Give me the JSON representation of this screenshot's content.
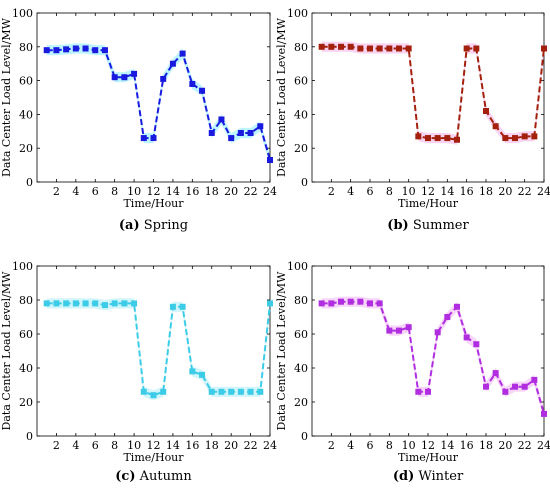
{
  "chart_data": [
    {
      "type": "line",
      "caption_tag": "(a)",
      "caption_text": "Spring",
      "xlabel": "Time/Hour",
      "ylabel": "Data Center Load Level/MW",
      "xlim": [
        0,
        24
      ],
      "ylim": [
        0,
        100
      ],
      "xticks": [
        2,
        4,
        6,
        8,
        10,
        12,
        14,
        16,
        18,
        20,
        22,
        24
      ],
      "yticks": [
        0,
        20,
        40,
        60,
        80,
        100
      ],
      "grid": false,
      "color": "#1a1adf",
      "band_color": "#a6f0ff",
      "x": [
        1,
        2,
        3,
        4,
        5,
        6,
        7,
        8,
        9,
        10,
        11,
        12,
        13,
        14,
        15,
        16,
        17,
        18,
        19,
        20,
        21,
        22,
        23,
        24
      ],
      "values": [
        78,
        78,
        78.5,
        79,
        79,
        78,
        78,
        62,
        62,
        64,
        26,
        26,
        61,
        70,
        76,
        58,
        54,
        29,
        37,
        26,
        29,
        29,
        33,
        13
      ]
    },
    {
      "type": "line",
      "caption_tag": "(b)",
      "caption_text": "Summer",
      "xlabel": "Time/Hour",
      "ylabel": "Data Center Load Level/MW",
      "xlim": [
        0,
        24
      ],
      "ylim": [
        0,
        100
      ],
      "xticks": [
        2,
        4,
        6,
        8,
        10,
        12,
        14,
        16,
        18,
        20,
        22,
        24
      ],
      "yticks": [
        0,
        20,
        40,
        60,
        80,
        100
      ],
      "grid": false,
      "color": "#a3200c",
      "band_color": "#f7c6ee",
      "x": [
        1,
        2,
        3,
        4,
        5,
        6,
        7,
        8,
        9,
        10,
        11,
        12,
        13,
        14,
        15,
        16,
        17,
        18,
        19,
        20,
        21,
        22,
        23,
        24
      ],
      "values": [
        80,
        80,
        80,
        80,
        79,
        79,
        79,
        79,
        79,
        79,
        27,
        26,
        26,
        26,
        25,
        79,
        79,
        42,
        33,
        26,
        26,
        27,
        27,
        79
      ]
    },
    {
      "type": "line",
      "caption_tag": "(c)",
      "caption_text": "Autumn",
      "xlabel": "Time/Hour",
      "ylabel": "Data Center Load Level/MW",
      "xlim": [
        0,
        24
      ],
      "ylim": [
        0,
        100
      ],
      "xticks": [
        2,
        4,
        6,
        8,
        10,
        12,
        14,
        16,
        18,
        20,
        22,
        24
      ],
      "yticks": [
        0,
        20,
        40,
        60,
        80,
        100
      ],
      "grid": false,
      "color": "#3ccce8",
      "band_color": "#c2f2f8",
      "x": [
        1,
        2,
        3,
        4,
        5,
        6,
        7,
        8,
        9,
        10,
        11,
        12,
        13,
        14,
        15,
        16,
        17,
        18,
        19,
        20,
        21,
        22,
        23,
        24
      ],
      "values": [
        78,
        78,
        78,
        78,
        78,
        78,
        77,
        78,
        78,
        78,
        26,
        24,
        26,
        76,
        76,
        38,
        36,
        26,
        26,
        26,
        26,
        26,
        26,
        78
      ]
    },
    {
      "type": "line",
      "caption_tag": "(d)",
      "caption_text": "Winter",
      "xlabel": "Time/Hour",
      "ylabel": "Data Center Load Level/MW",
      "xlim": [
        0,
        24
      ],
      "ylim": [
        0,
        100
      ],
      "xticks": [
        2,
        4,
        6,
        8,
        10,
        12,
        14,
        16,
        18,
        20,
        22,
        24
      ],
      "yticks": [
        0,
        20,
        40,
        60,
        80,
        100
      ],
      "grid": false,
      "color": "#b02ee0",
      "band_color": "#f4c8f7",
      "x": [
        1,
        2,
        3,
        4,
        5,
        6,
        7,
        8,
        9,
        10,
        11,
        12,
        13,
        14,
        15,
        16,
        17,
        18,
        19,
        20,
        21,
        22,
        23,
        24
      ],
      "values": [
        78,
        78,
        79,
        79,
        79,
        78,
        78,
        62,
        62,
        64,
        26,
        26,
        61,
        70,
        76,
        58,
        54,
        29,
        37,
        26,
        29,
        29,
        33,
        13
      ]
    }
  ]
}
